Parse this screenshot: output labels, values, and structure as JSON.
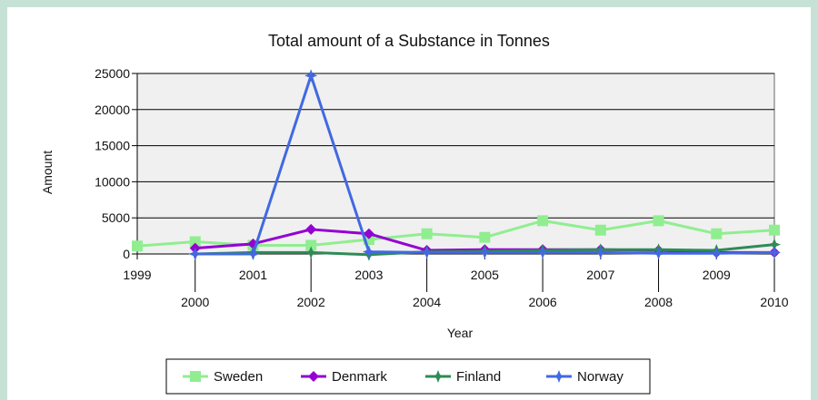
{
  "chart_data": {
    "type": "line",
    "title": "Total amount of a Substance in Tonnes",
    "xlabel": "Year",
    "ylabel": "Amount",
    "ylim": [
      0,
      25000
    ],
    "yticks": [
      0,
      5000,
      10000,
      15000,
      20000,
      25000
    ],
    "x": [
      "1999",
      "2000",
      "2001",
      "2002",
      "2003",
      "2004",
      "2005",
      "2006",
      "2007",
      "2008",
      "2009",
      "2010"
    ],
    "grid": true,
    "legend_position": "bottom",
    "series": [
      {
        "name": "Sweden",
        "color": "#90ee90",
        "marker": "square",
        "values": [
          1100,
          1700,
          1200,
          1200,
          2000,
          2800,
          2300,
          4600,
          3300,
          4600,
          2800,
          3300
        ]
      },
      {
        "name": "Denmark",
        "color": "#9400d3",
        "marker": "diamond",
        "values": [
          null,
          800,
          1400,
          3400,
          2800,
          500,
          600,
          600,
          600,
          500,
          200,
          200
        ]
      },
      {
        "name": "Finland",
        "color": "#2e8b57",
        "marker": "cross",
        "values": [
          null,
          0,
          200,
          200,
          -100,
          300,
          400,
          500,
          600,
          600,
          500,
          1300
        ]
      },
      {
        "name": "Norway",
        "color": "#4169e1",
        "marker": "star",
        "values": [
          null,
          0,
          0,
          24700,
          300,
          200,
          200,
          200,
          200,
          100,
          100,
          200
        ]
      }
    ]
  }
}
